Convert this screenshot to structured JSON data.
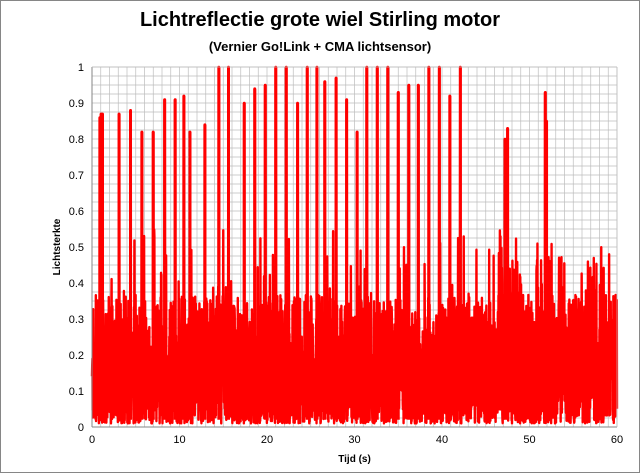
{
  "chart_data": {
    "type": "line",
    "title": "Lichtreflectie grote wiel Stirling motor",
    "subtitle": "(Vernier Go!Link + CMA lichtsensor)",
    "xlabel": "Tijd (s)",
    "ylabel": "Lichtsterkte",
    "xlim": [
      0,
      60
    ],
    "ylim": [
      0,
      1
    ],
    "xticks": [
      "0",
      "10",
      "20",
      "30",
      "40",
      "50",
      "60"
    ],
    "yticks": [
      "0",
      "0.1",
      "0.2",
      "0.3",
      "0.4",
      "0.5",
      "0.6",
      "0.7",
      "0.8",
      "0.9",
      "1"
    ],
    "grid": true,
    "legend": "none",
    "series_color": "#ff0000",
    "series": [
      {
        "x": [
          0.9,
          1.05,
          1.2,
          3.1,
          4.4,
          5.7,
          7.0,
          8.3,
          9.5,
          10.5,
          11.2,
          12.9,
          14.5,
          15.6,
          17.4,
          18.6,
          19.8,
          21.0,
          22.2,
          23.5,
          24.6,
          25.7,
          26.6,
          27.9,
          29.1,
          30.3,
          31.4,
          32.6,
          33.8,
          35.0,
          36.2,
          37.3,
          38.5,
          39.7,
          40.9,
          42.1,
          47.2,
          47.5,
          51.8,
          51.95
        ],
        "y": [
          0.86,
          0.87,
          0.87,
          0.87,
          0.88,
          0.82,
          0.82,
          0.91,
          0.91,
          0.92,
          0.82,
          0.84,
          1.0,
          1.0,
          0.9,
          0.94,
          0.95,
          1.0,
          1.0,
          0.9,
          1.0,
          1.0,
          0.96,
          0.97,
          0.91,
          0.82,
          1.0,
          1.0,
          1.0,
          0.93,
          0.95,
          0.95,
          1.0,
          1.0,
          0.92,
          1.0,
          0.8,
          0.83,
          0.93,
          0.85
        ]
      }
    ]
  }
}
